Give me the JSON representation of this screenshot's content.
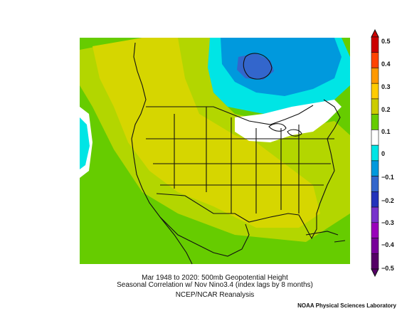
{
  "map": {
    "title_line1": "Mar 1948 to 2020: 500mb Geopotential Height",
    "title_line2": "Seasonal Correlation w/ Nov Nino3.4 (index lags by 8 months)",
    "title_line3": "NCEP/NCAR Reanalysis",
    "credit": "NOAA Physical Sciences Laboratory"
  },
  "colorbar": {
    "labels": [
      "0.5",
      "0.4",
      "0.3",
      "0.2",
      "0.1",
      "0",
      "−0.1",
      "−0.2",
      "−0.3",
      "−0.4",
      "−0.5"
    ],
    "colors": [
      "#cc0000",
      "#ff4400",
      "#ff9900",
      "#ffcc00",
      "#cccc00",
      "#66cc00",
      "#ffffff",
      "#00e5e5",
      "#0099dd",
      "#3366cc",
      "#2233bb",
      "#7733cc",
      "#9900bb",
      "#770099",
      "#550066"
    ]
  }
}
